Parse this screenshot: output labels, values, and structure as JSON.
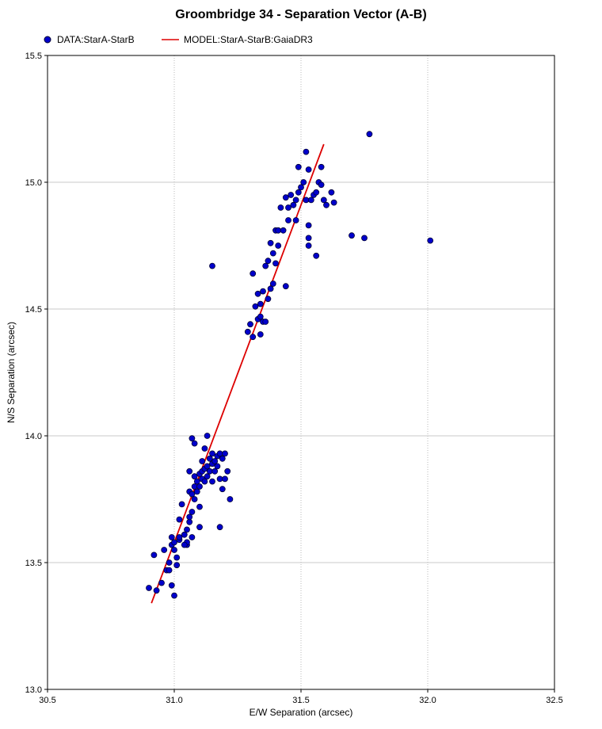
{
  "chart_data": {
    "type": "scatter",
    "title": "Groombridge 34 - Separation Vector (A-B)",
    "xlabel": "E/W Separation (arcsec)",
    "ylabel": "N/S Separation (arcsec)",
    "xlim": [
      30.5,
      32.5
    ],
    "ylim": [
      13.0,
      15.5
    ],
    "xticks": [
      "30.5",
      "31.0",
      "31.5",
      "32.0",
      "32.5"
    ],
    "yticks": [
      "13.0",
      "13.5",
      "14.0",
      "14.5",
      "15.0",
      "15.5"
    ],
    "x_grid": "dotted vertical",
    "y_grid": "solid horizontal",
    "legend_position": "top-left",
    "series": [
      {
        "name": "DATA:StarA-StarB",
        "kind": "scatter",
        "color": "#0000cc",
        "points": [
          [
            30.9,
            13.4
          ],
          [
            30.92,
            13.53
          ],
          [
            30.93,
            13.39
          ],
          [
            30.95,
            13.42
          ],
          [
            30.96,
            13.55
          ],
          [
            30.97,
            13.47
          ],
          [
            30.98,
            13.5
          ],
          [
            30.98,
            13.47
          ],
          [
            30.99,
            13.6
          ],
          [
            30.99,
            13.57
          ],
          [
            31.0,
            13.55
          ],
          [
            31.0,
            13.58
          ],
          [
            30.99,
            13.41
          ],
          [
            31.0,
            13.37
          ],
          [
            31.01,
            13.52
          ],
          [
            31.01,
            13.49
          ],
          [
            31.02,
            13.59
          ],
          [
            31.02,
            13.6
          ],
          [
            31.03,
            13.73
          ],
          [
            31.04,
            13.61
          ],
          [
            31.05,
            13.63
          ],
          [
            31.05,
            13.57
          ],
          [
            31.05,
            13.58
          ],
          [
            31.06,
            13.66
          ],
          [
            31.06,
            13.68
          ],
          [
            31.06,
            13.78
          ],
          [
            31.06,
            13.86
          ],
          [
            31.07,
            13.6
          ],
          [
            31.07,
            13.7
          ],
          [
            31.07,
            13.77
          ],
          [
            31.08,
            13.75
          ],
          [
            31.08,
            13.8
          ],
          [
            31.08,
            13.84
          ],
          [
            31.09,
            13.78
          ],
          [
            31.09,
            13.82
          ],
          [
            31.1,
            13.8
          ],
          [
            31.1,
            13.64
          ],
          [
            31.1,
            13.72
          ],
          [
            31.1,
            13.85
          ],
          [
            31.11,
            13.83
          ],
          [
            31.11,
            13.86
          ],
          [
            31.11,
            13.9
          ],
          [
            31.12,
            13.87
          ],
          [
            31.12,
            13.82
          ],
          [
            31.12,
            13.95
          ],
          [
            31.13,
            13.88
          ],
          [
            31.13,
            13.84
          ],
          [
            31.13,
            14.0
          ],
          [
            31.14,
            13.91
          ],
          [
            31.14,
            13.86
          ],
          [
            31.15,
            13.93
          ],
          [
            31.15,
            13.89
          ],
          [
            31.15,
            13.82
          ],
          [
            31.16,
            13.9
          ],
          [
            31.16,
            13.86
          ],
          [
            31.17,
            13.88
          ],
          [
            31.17,
            13.92
          ],
          [
            31.18,
            13.83
          ],
          [
            31.18,
            13.93
          ],
          [
            31.19,
            13.91
          ],
          [
            31.19,
            13.79
          ],
          [
            31.2,
            13.83
          ],
          [
            31.2,
            13.93
          ],
          [
            31.21,
            13.86
          ],
          [
            31.22,
            13.75
          ],
          [
            31.18,
            13.64
          ],
          [
            31.07,
            13.99
          ],
          [
            31.08,
            13.97
          ],
          [
            31.02,
            13.67
          ],
          [
            31.04,
            13.57
          ],
          [
            31.15,
            14.67
          ],
          [
            31.29,
            14.41
          ],
          [
            31.3,
            14.44
          ],
          [
            31.31,
            14.39
          ],
          [
            31.31,
            14.64
          ],
          [
            31.32,
            14.51
          ],
          [
            31.33,
            14.56
          ],
          [
            31.33,
            14.46
          ],
          [
            31.34,
            14.4
          ],
          [
            31.34,
            14.47
          ],
          [
            31.34,
            14.52
          ],
          [
            31.35,
            14.57
          ],
          [
            31.35,
            14.45
          ],
          [
            31.36,
            14.45
          ],
          [
            31.36,
            14.67
          ],
          [
            31.37,
            14.69
          ],
          [
            31.37,
            14.54
          ],
          [
            31.38,
            14.58
          ],
          [
            31.38,
            14.76
          ],
          [
            31.39,
            14.6
          ],
          [
            31.39,
            14.72
          ],
          [
            31.4,
            14.68
          ],
          [
            31.4,
            14.81
          ],
          [
            31.41,
            14.75
          ],
          [
            31.41,
            14.81
          ],
          [
            31.42,
            14.9
          ],
          [
            31.43,
            14.81
          ],
          [
            31.44,
            14.59
          ],
          [
            31.44,
            14.94
          ],
          [
            31.45,
            14.9
          ],
          [
            31.45,
            14.85
          ],
          [
            31.46,
            14.95
          ],
          [
            31.47,
            14.91
          ],
          [
            31.48,
            14.93
          ],
          [
            31.48,
            14.85
          ],
          [
            31.49,
            14.96
          ],
          [
            31.5,
            14.98
          ],
          [
            31.51,
            15.0
          ],
          [
            31.52,
            14.93
          ],
          [
            31.53,
            14.83
          ],
          [
            31.53,
            14.78
          ],
          [
            31.53,
            14.75
          ],
          [
            31.54,
            14.93
          ],
          [
            31.55,
            14.95
          ],
          [
            31.56,
            14.96
          ],
          [
            31.57,
            15.0
          ],
          [
            31.58,
            15.06
          ],
          [
            31.59,
            14.93
          ],
          [
            31.6,
            14.91
          ],
          [
            31.62,
            14.96
          ],
          [
            31.63,
            14.92
          ],
          [
            31.52,
            15.12
          ],
          [
            31.53,
            15.05
          ],
          [
            31.49,
            15.06
          ],
          [
            31.56,
            14.71
          ],
          [
            31.58,
            14.99
          ],
          [
            31.7,
            14.79
          ],
          [
            31.75,
            14.78
          ],
          [
            31.77,
            15.19
          ],
          [
            32.01,
            14.77
          ]
        ]
      },
      {
        "name": "MODEL:StarA-StarB:GaiaDR3",
        "kind": "line",
        "color": "#dd0000",
        "points": [
          [
            30.91,
            13.34
          ],
          [
            31.59,
            15.15
          ]
        ]
      }
    ]
  }
}
